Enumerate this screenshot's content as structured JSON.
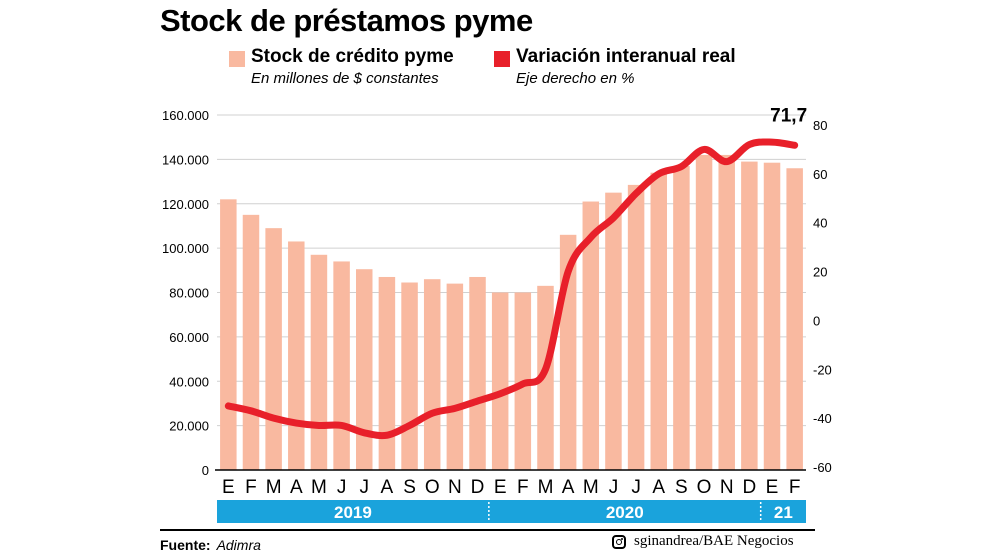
{
  "header": {
    "title": "Stock de préstamos pyme"
  },
  "legend": [
    {
      "label": "Stock de crédito pyme",
      "sub": "En millones de $ constantes",
      "color": "#f9b9a0"
    },
    {
      "label": "Variación interanual real",
      "sub": "Eje derecho en %",
      "color": "#e8202a"
    }
  ],
  "footer": {
    "source_label": "Fuente:",
    "source_value": "Adimra",
    "credit": "sginandrea/BAE Negocios",
    "credit_icon": "instagram-icon"
  },
  "colors": {
    "bar": "#f9b9a0",
    "line": "#e8202a",
    "year_band": "#1aa3dc",
    "grid": "#d0d0d0"
  },
  "chart_data": {
    "type": "bar",
    "categories": [
      "E",
      "F",
      "M",
      "A",
      "M",
      "J",
      "J",
      "A",
      "S",
      "O",
      "N",
      "D",
      "E",
      "F",
      "M",
      "A",
      "M",
      "J",
      "J",
      "A",
      "S",
      "O",
      "N",
      "D",
      "E",
      "F"
    ],
    "year_labels": [
      {
        "label": "2019",
        "from": 0,
        "to": 11
      },
      {
        "label": "2020",
        "from": 12,
        "to": 23
      },
      {
        "label": "21",
        "from": 24,
        "to": 25
      }
    ],
    "series": [
      {
        "name": "Stock de crédito pyme",
        "type": "bar",
        "axis": "left",
        "values": [
          122000,
          115000,
          109000,
          103000,
          97000,
          94000,
          90500,
          87000,
          84500,
          86000,
          84000,
          87000,
          80000,
          80000,
          83000,
          106000,
          121000,
          125000,
          128500,
          134000,
          137000,
          142000,
          142000,
          139000,
          138500,
          136000
        ]
      },
      {
        "name": "Variación interanual real",
        "type": "line",
        "axis": "right",
        "values": [
          -35,
          -37,
          -40,
          -42,
          -43,
          -43,
          -46,
          -47,
          -43,
          -38,
          -36,
          -33,
          -30,
          -26,
          -20,
          20,
          34,
          42,
          52,
          60,
          63,
          70,
          65,
          72,
          73,
          71.7
        ]
      }
    ],
    "left_axis": {
      "min": 0,
      "max": 160000,
      "ticks": [
        "0",
        "20.000",
        "40.000",
        "60.000",
        "80.000",
        "100.000",
        "120.000",
        "140.000",
        "160.000"
      ]
    },
    "right_axis": {
      "min": -60,
      "max": 80,
      "ticks": [
        "-60",
        "-40",
        "-20",
        "0",
        "20",
        "40",
        "60",
        "80"
      ]
    },
    "annotation": {
      "text": "71,7",
      "index": 25
    },
    "grid": true
  }
}
